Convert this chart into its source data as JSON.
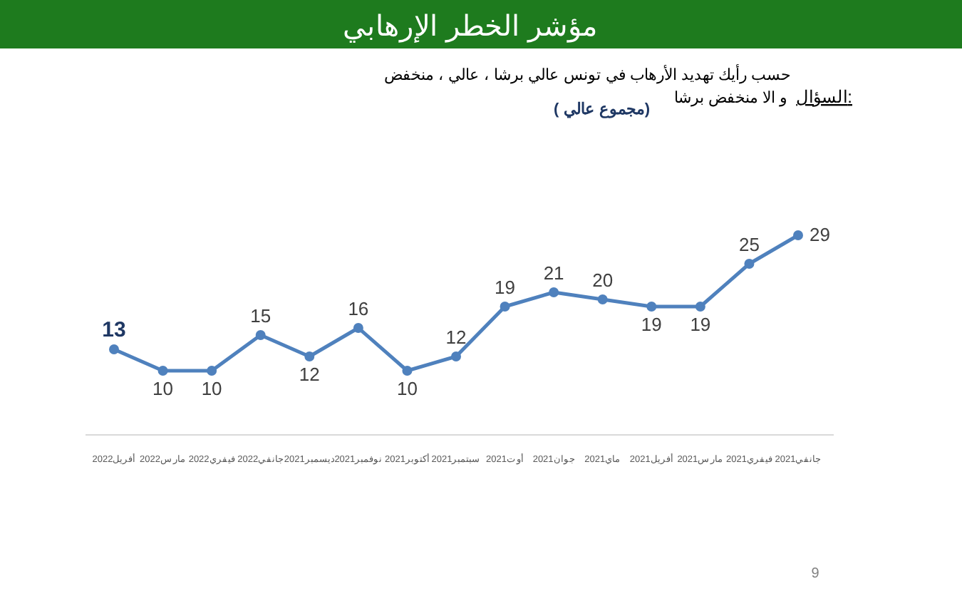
{
  "chart_data": {
    "type": "line",
    "title": "مؤشر الخطر الإرهابي",
    "annotations": [
      "السؤال:",
      "حسب رأيك تهديد الأرهاب في تونس عالي برشا ، عالي ، منخفض",
      "و الا منخفض برشا",
      "(مجموع عالي )",
      "9"
    ],
    "categories": [
      "2022أفريل",
      "2022مارس",
      "2022فيفري",
      "2022جانفي",
      "2021ديسمبر",
      "2021نوفمبر",
      "2021أكتوبر",
      "2021سبتمبر",
      "2021أوت",
      "2021جوان",
      "2021ماي",
      "2021أفريل",
      "2021مارس",
      "2021فيفري",
      "2021جانفي"
    ],
    "series": [
      {
        "color": "#4f81bd",
        "values": [
          13,
          10,
          10,
          15,
          12,
          16,
          10,
          12,
          19,
          21,
          20,
          19,
          19,
          25,
          29
        ]
      }
    ],
    "data_labels": true,
    "marker": "circle"
  }
}
